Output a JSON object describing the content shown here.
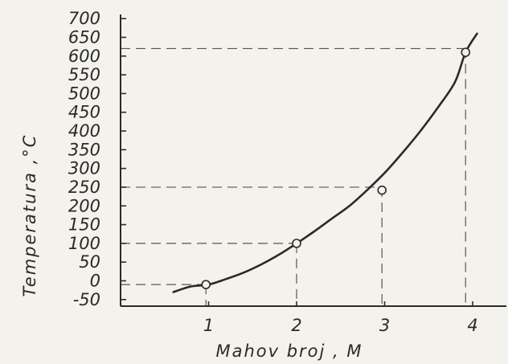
{
  "chart_data": {
    "type": "line",
    "title": "",
    "xlabel": "Mahov broj , M",
    "ylabel": "Temperatura ,°C",
    "xlim": [
      0,
      4.3
    ],
    "ylim": [
      -50,
      700
    ],
    "x_ticks": [
      1,
      2,
      3,
      4
    ],
    "x_tick_labels": [
      "1",
      "2",
      "3",
      "4"
    ],
    "y_ticks": [
      -50,
      0,
      50,
      100,
      150,
      200,
      250,
      300,
      350,
      400,
      450,
      500,
      550,
      600,
      650,
      700
    ],
    "y_tick_labels": [
      "-50",
      "0",
      "50",
      "100",
      "150",
      "200",
      "250",
      "300",
      "350",
      "400",
      "450",
      "500",
      "550",
      "600",
      "650",
      "700"
    ],
    "grid": false,
    "series": [
      {
        "name": "",
        "color": "#2a2a2a",
        "x": [
          0.6,
          0.8,
          1.0,
          1.2,
          1.4,
          1.6,
          1.8,
          2.0,
          2.2,
          2.4,
          2.6,
          2.8,
          3.0,
          3.2,
          3.4,
          3.6,
          3.8,
          3.92,
          4.05
        ],
        "y": [
          -30,
          -15,
          -10,
          5,
          22,
          44,
          70,
          100,
          132,
          166,
          200,
          242,
          288,
          341,
          398,
          461,
          531,
          610,
          660
        ]
      }
    ],
    "marked_points": [
      {
        "x": 0.97,
        "y": -10
      },
      {
        "x": 2.0,
        "y": 100
      },
      {
        "x": 2.97,
        "y": 242
      },
      {
        "x": 3.92,
        "y": 610
      }
    ],
    "reference_lines": [
      {
        "x": 0.97,
        "y": -10
      },
      {
        "x": 2.0,
        "y": 100
      },
      {
        "x": 2.97,
        "y": 250
      },
      {
        "x": 3.92,
        "y": 620
      }
    ]
  }
}
